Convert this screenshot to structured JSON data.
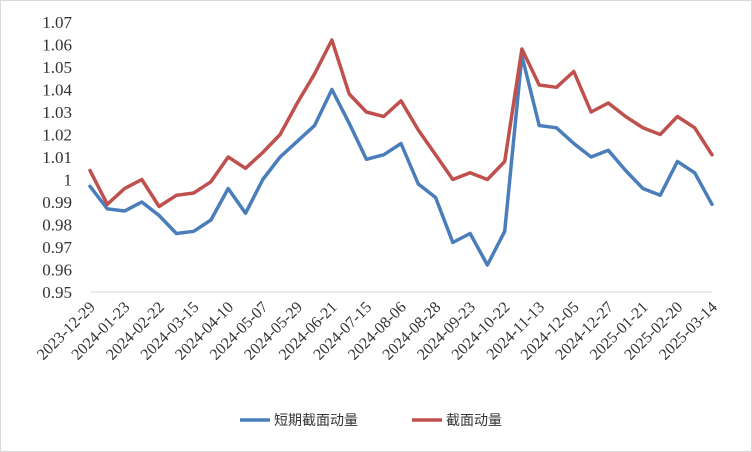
{
  "chart_data": {
    "type": "line",
    "title": "",
    "xlabel": "",
    "ylabel": "",
    "ylim": [
      0.95,
      1.07
    ],
    "y_ticks": [
      0.95,
      0.96,
      0.97,
      0.98,
      0.99,
      1,
      1.01,
      1.02,
      1.03,
      1.04,
      1.05,
      1.06,
      1.07
    ],
    "y_tick_labels": [
      "0.95",
      "0.96",
      "0.97",
      "0.98",
      "0.99",
      "1",
      "1.01",
      "1.02",
      "1.03",
      "1.04",
      "1.05",
      "1.06",
      "1.07"
    ],
    "x_tick_labels": [
      "2023-12-29",
      "2024-01-23",
      "2024-02-22",
      "2024-03-15",
      "2024-04-10",
      "2024-05-07",
      "2024-05-29",
      "2024-06-21",
      "2024-07-15",
      "2024-08-06",
      "2024-08-28",
      "2024-09-23",
      "2024-10-22",
      "2024-11-13",
      "2024-12-05",
      "2024-12-27",
      "2025-01-21",
      "2025-02-20",
      "2025-03-14"
    ],
    "grid": false,
    "legend_position": "bottom",
    "series": [
      {
        "name": "短期截面动量",
        "color": "#4a7ebb",
        "x": [
          0,
          0.5,
          1,
          1.5,
          2,
          2.5,
          3,
          3.5,
          4,
          4.5,
          5,
          5.5,
          6,
          6.5,
          7,
          7.5,
          8,
          8.5,
          9,
          9.5,
          10,
          10.5,
          11,
          11.5,
          12,
          12.5,
          13,
          13.5,
          14,
          14.5,
          15,
          15.5,
          16,
          16.5,
          17,
          17.5,
          18
        ],
        "values": [
          0.997,
          0.987,
          0.986,
          0.99,
          0.984,
          0.976,
          0.977,
          0.982,
          0.996,
          0.985,
          1.0,
          1.01,
          1.017,
          1.024,
          1.04,
          1.025,
          1.009,
          1.011,
          1.016,
          0.998,
          0.992,
          0.972,
          0.976,
          0.962,
          0.977,
          1.055,
          1.024,
          1.023,
          1.016,
          1.01,
          1.013,
          1.004,
          0.996,
          0.993,
          1.008,
          1.003,
          0.989
        ]
      },
      {
        "name": "截面动量",
        "color": "#c0504d",
        "x": [
          0,
          0.5,
          1,
          1.5,
          2,
          2.5,
          3,
          3.5,
          4,
          4.5,
          5,
          5.5,
          6,
          6.5,
          7,
          7.5,
          8,
          8.5,
          9,
          9.5,
          10,
          10.5,
          11,
          11.5,
          12,
          12.5,
          13,
          13.5,
          14,
          14.5,
          15,
          15.5,
          16,
          16.5,
          17,
          17.5,
          18
        ],
        "values": [
          1.004,
          0.989,
          0.996,
          1.0,
          0.988,
          0.993,
          0.994,
          0.999,
          1.01,
          1.005,
          1.012,
          1.02,
          1.034,
          1.047,
          1.062,
          1.038,
          1.03,
          1.028,
          1.035,
          1.022,
          1.011,
          1.0,
          1.003,
          1.0,
          1.008,
          1.058,
          1.042,
          1.041,
          1.048,
          1.03,
          1.034,
          1.028,
          1.023,
          1.02,
          1.028,
          1.023,
          1.011
        ]
      }
    ]
  }
}
